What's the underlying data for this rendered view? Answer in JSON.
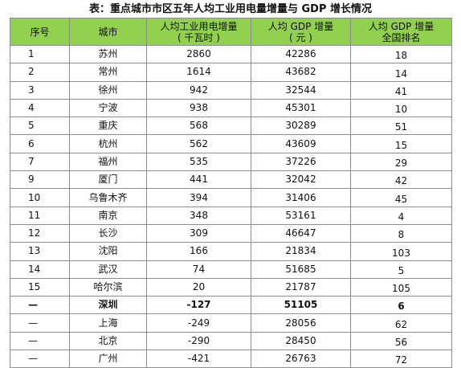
{
  "title": "表：重点城市市区五年人均工业用电量增量与 GDP 增长情况",
  "headers": {
    "seq": "序号",
    "city": "城市",
    "power_line1": "人均工业用电增量",
    "power_line2": "( 千瓦时 )",
    "gdp_line1": "人均 GDP 增量",
    "gdp_line2": "( 元 )",
    "rank_line1": "人均 GDP 增量",
    "rank_line2": "全国排名"
  },
  "rows": [
    {
      "seq": "1",
      "city": "苏州",
      "power": "2860",
      "gdp": "42286",
      "rank": "18"
    },
    {
      "seq": "2",
      "city": "常州",
      "power": "1614",
      "gdp": "43682",
      "rank": "14"
    },
    {
      "seq": "3",
      "city": "徐州",
      "power": "942",
      "gdp": "32544",
      "rank": "41"
    },
    {
      "seq": "4",
      "city": "宁波",
      "power": "938",
      "gdp": "45301",
      "rank": "10"
    },
    {
      "seq": "5",
      "city": "重庆",
      "power": "568",
      "gdp": "30289",
      "rank": "51"
    },
    {
      "seq": "6",
      "city": "杭州",
      "power": "562",
      "gdp": "43609",
      "rank": "15"
    },
    {
      "seq": "7",
      "city": "福州",
      "power": "535",
      "gdp": "37226",
      "rank": "29"
    },
    {
      "seq": "9",
      "city": "厦门",
      "power": "441",
      "gdp": "32042",
      "rank": "42"
    },
    {
      "seq": "10",
      "city": "乌鲁木齐",
      "power": "394",
      "gdp": "31406",
      "rank": "45"
    },
    {
      "seq": "11",
      "city": "南京",
      "power": "348",
      "gdp": "53161",
      "rank": "4"
    },
    {
      "seq": "12",
      "city": "长沙",
      "power": "309",
      "gdp": "46647",
      "rank": "8"
    },
    {
      "seq": "13",
      "city": "沈阳",
      "power": "166",
      "gdp": "21834",
      "rank": "103"
    },
    {
      "seq": "14",
      "city": "武汉",
      "power": "74",
      "gdp": "51685",
      "rank": "5"
    },
    {
      "seq": "15",
      "city": "哈尔滨",
      "power": "20",
      "gdp": "21787",
      "rank": "105"
    },
    {
      "seq": "—",
      "city": "深圳",
      "power": "-127",
      "gdp": "51105",
      "rank": "6"
    },
    {
      "seq": "—",
      "city": "上海",
      "power": "-249",
      "gdp": "28056",
      "rank": "62"
    },
    {
      "seq": "—",
      "city": "北京",
      "power": "-290",
      "gdp": "28450",
      "rank": "56"
    },
    {
      "seq": "—",
      "city": "广州",
      "power": "-421",
      "gdp": "26763",
      "rank": "72"
    }
  ]
}
